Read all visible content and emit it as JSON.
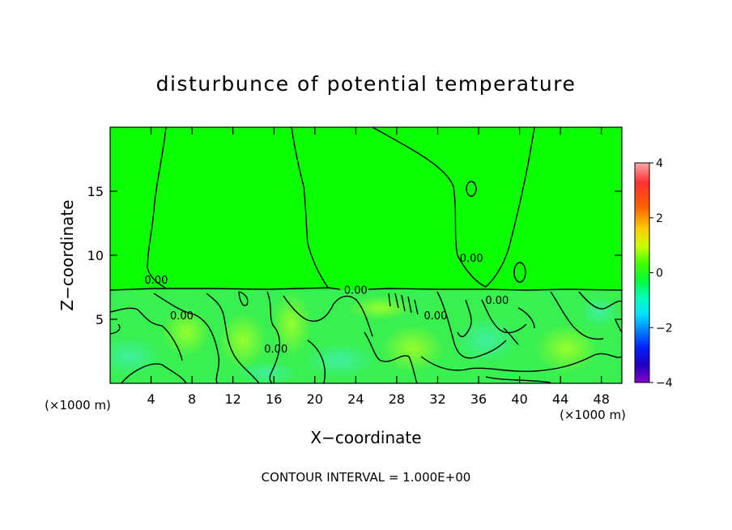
{
  "chart_data": {
    "type": "heatmap",
    "title": "disturbunce of potential temperature",
    "xlabel": "X−coordinate",
    "ylabel": "Z−coordinate",
    "x_unit_left": "(×1000 m)",
    "x_unit_right": "(×1000 m)",
    "xlim": [
      0,
      50
    ],
    "ylim": [
      0,
      20
    ],
    "xticks": [
      4,
      8,
      12,
      16,
      20,
      24,
      28,
      32,
      36,
      40,
      44,
      48
    ],
    "yticks": [
      5,
      10,
      15
    ],
    "colorbar": {
      "range": [
        -4,
        4
      ],
      "ticks": [
        4,
        2,
        0,
        -2,
        -4
      ],
      "tick_labels": [
        "4",
        "2",
        "0",
        "−2",
        "−4"
      ]
    },
    "field_value_upper": 0.1,
    "field_value_lower": -0.3,
    "contour_labels": [
      {
        "text": "0.00",
        "x": 4.5,
        "z": 7.8
      },
      {
        "text": "0.00",
        "x": 7.0,
        "z": 5.0
      },
      {
        "text": "0.00",
        "x": 24.0,
        "z": 7.0
      },
      {
        "text": "0.00",
        "x": 16.2,
        "z": 2.4
      },
      {
        "text": "0.00",
        "x": 31.8,
        "z": 5.0
      },
      {
        "text": "0.00",
        "x": 35.3,
        "z": 9.5
      },
      {
        "text": "0.00",
        "x": 37.8,
        "z": 6.2
      }
    ],
    "footer": "CONTOUR INTERVAL = 1.000E+00"
  }
}
